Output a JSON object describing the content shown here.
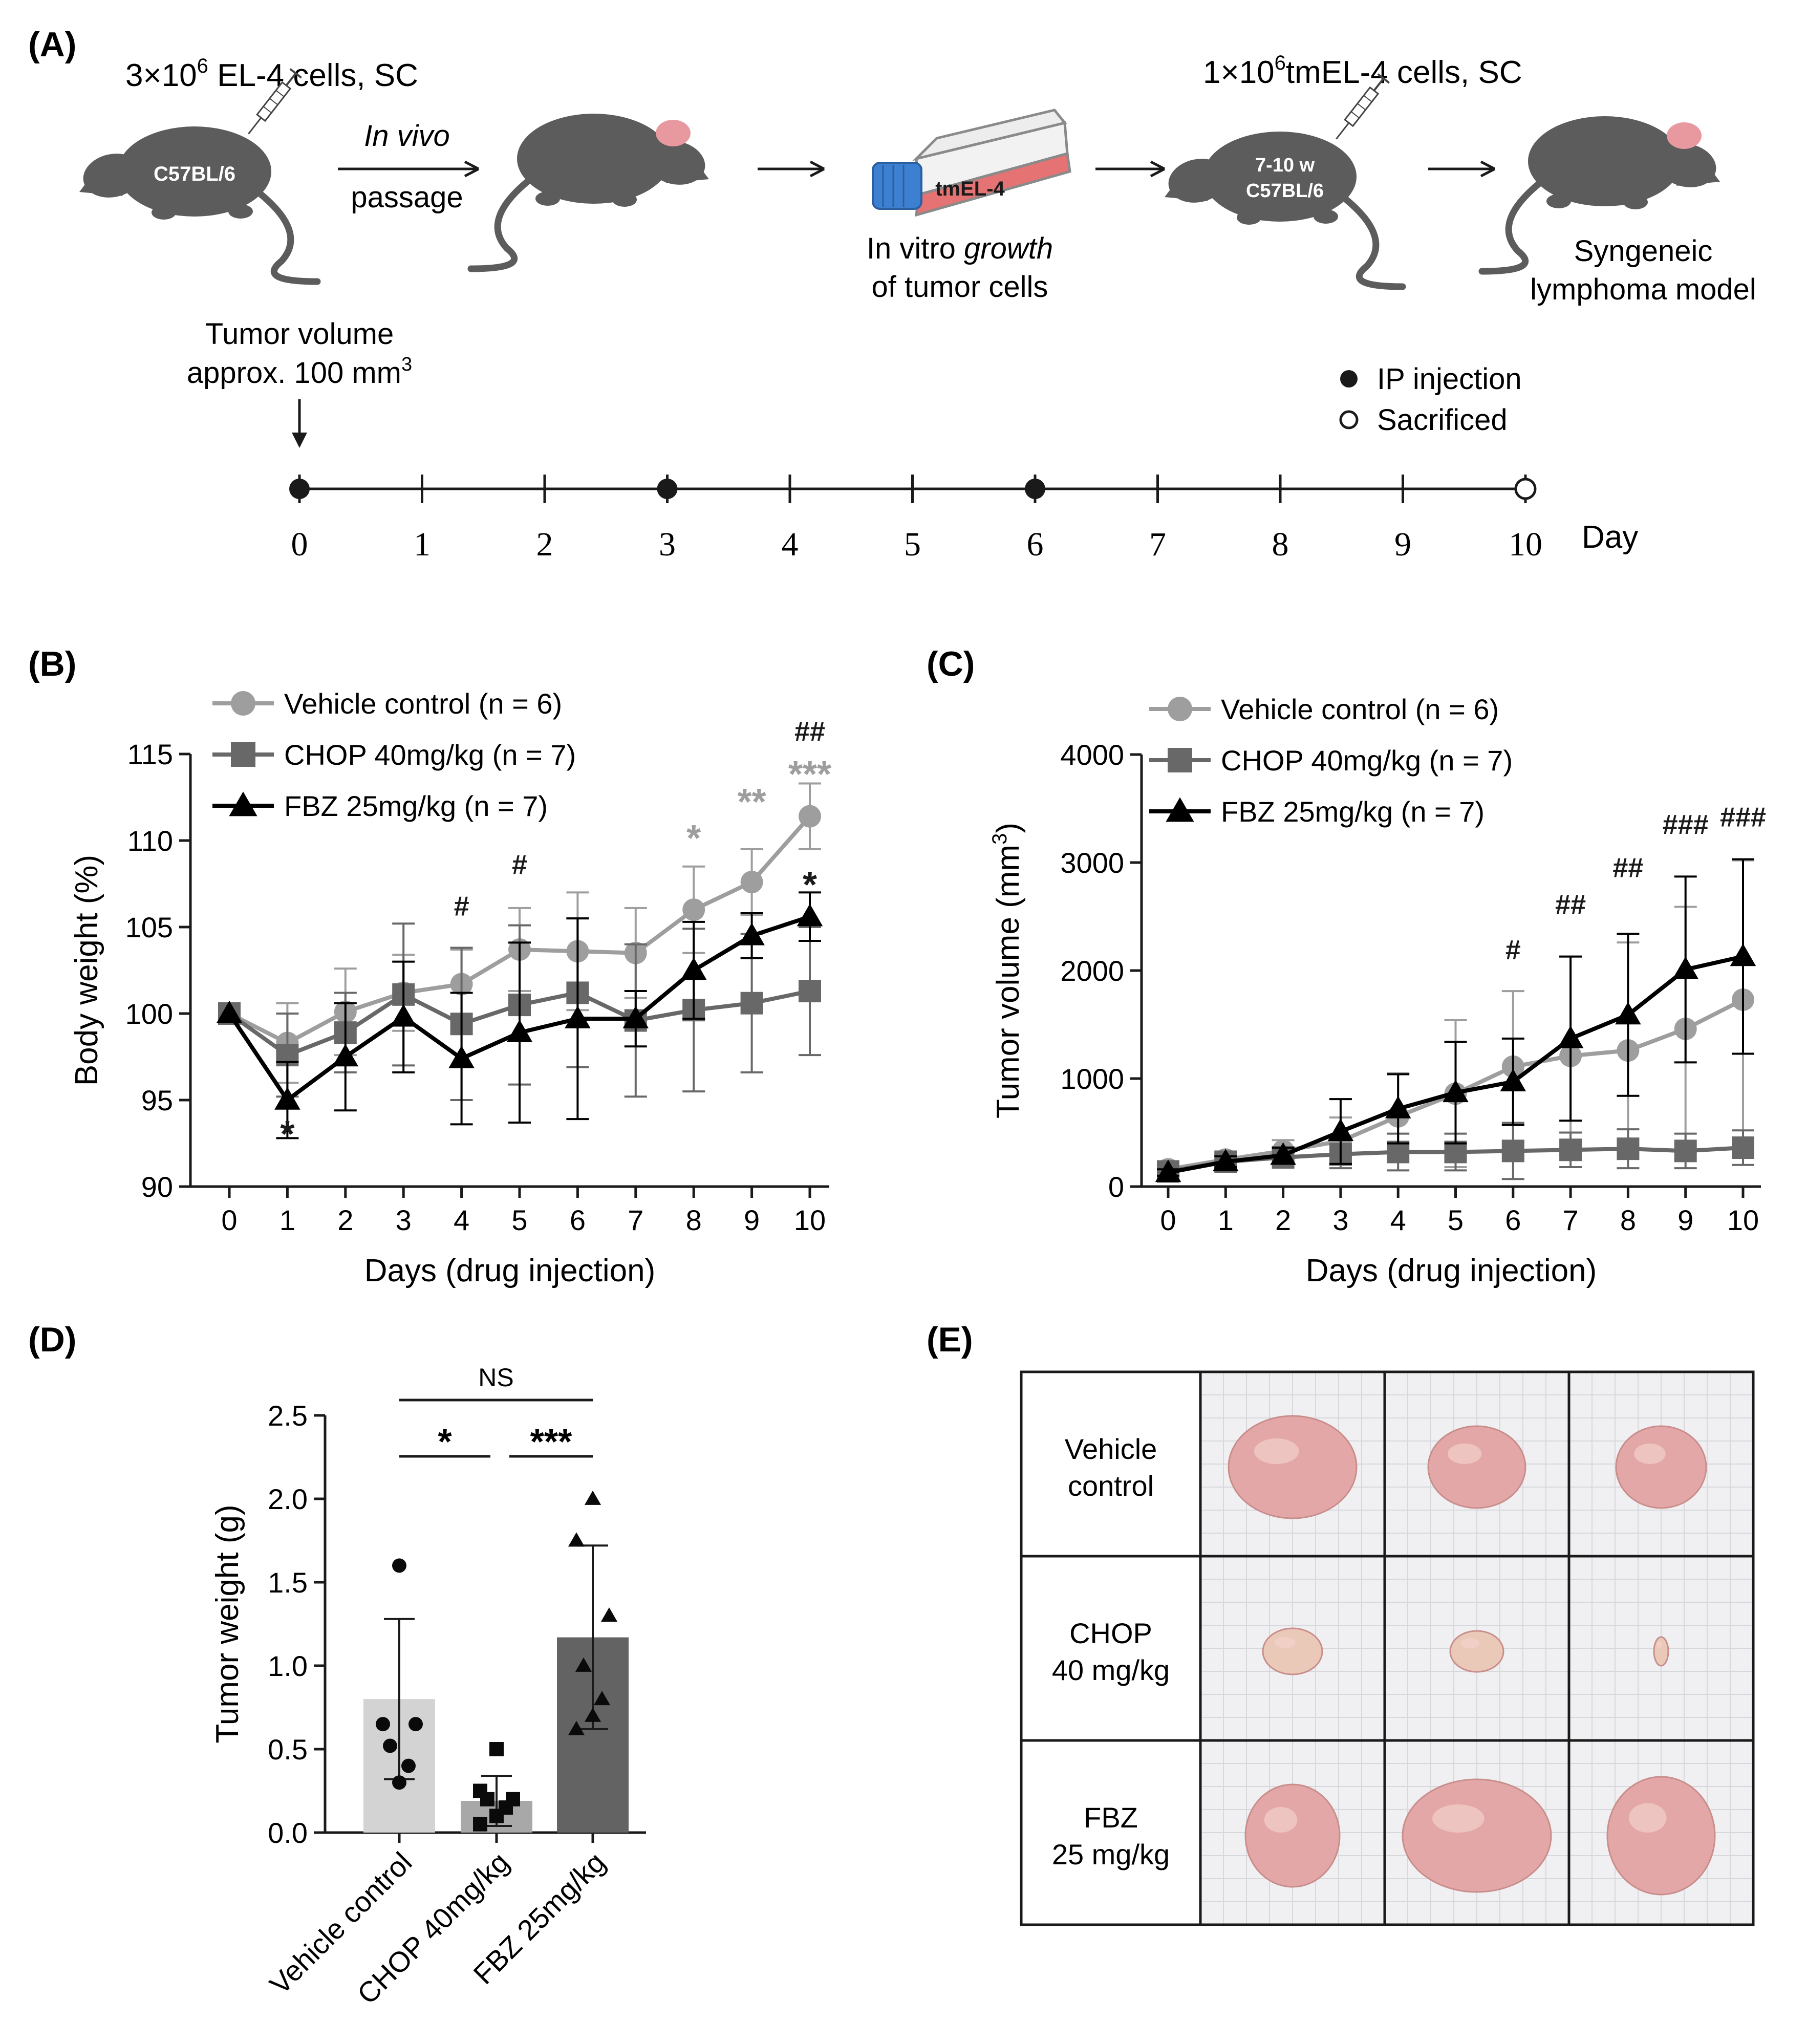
{
  "panel_labels": {
    "a": "(A)",
    "b": "(B)",
    "c": "(C)",
    "d": "(D)",
    "e": "(E)"
  },
  "panelA": {
    "step1_cells": "3×10",
    "step1_exp": "6",
    "step1_suffix": " EL-4 cells, SC",
    "mouse1_label": "C57BL/6",
    "arrow1_italic": "In vivo",
    "arrow1_sub": "passage",
    "flask_label": "tmEL-4",
    "flask_caption_1a": "In vitro ",
    "flask_caption_1b": "growth",
    "flask_caption_2": "of tumor cells",
    "step2_cells": "1×10",
    "step2_exp": "6",
    "step2_suffix": "tmEL-4 cells, SC",
    "mouse3_label_1": "7-10 w",
    "mouse3_label_2": "C57BL/6",
    "model_caption_1": "Syngeneic",
    "model_caption_2": "lymphoma model",
    "tumor_volume_1": "Tumor volume",
    "tumor_volume_2": "approx. 100 mm",
    "tumor_volume_exp": "3",
    "legend_ip": "IP injection",
    "legend_sacrificed": "Sacrificed",
    "timeline_unit": "Day",
    "timeline_days": [
      0,
      1,
      2,
      3,
      4,
      5,
      6,
      7,
      8,
      9,
      10
    ],
    "ip_injection_days": [
      0,
      3,
      6
    ],
    "sacrifice_day": 10,
    "colors": {
      "mouse": "#5c5c5c",
      "ear": "#e8999f",
      "flask_fill": "#e57373",
      "cap": "#3d7fd0"
    }
  },
  "chart_data": [
    {
      "id": "B",
      "type": "line",
      "xlabel": "Days (drug injection)",
      "ylabel": "Body weight (%)",
      "x": [
        0,
        1,
        2,
        3,
        4,
        5,
        6,
        7,
        8,
        9,
        10
      ],
      "xticks": [
        "0",
        "1",
        "2",
        "3",
        "4",
        "5",
        "6",
        "7",
        "8",
        "9",
        "10"
      ],
      "ylim": [
        90,
        115
      ],
      "yticks": [
        "90",
        "95",
        "100",
        "105",
        "110",
        "115"
      ],
      "legend_position": "top-left",
      "series": [
        {
          "name": "Vehicle control (n = 6)",
          "marker": "circle",
          "color": "#9e9e9e",
          "values": [
            100,
            98.3,
            100.1,
            101.2,
            101.7,
            103.7,
            103.6,
            103.5,
            106.0,
            107.6,
            111.4
          ],
          "err": [
            0,
            2.3,
            2.5,
            2.2,
            2.0,
            2.4,
            3.4,
            2.6,
            2.5,
            1.9,
            1.9
          ]
        },
        {
          "name": "CHOP 40mg/kg (n = 7)",
          "marker": "square",
          "color": "#686868",
          "values": [
            100,
            97.6,
            98.9,
            101.1,
            99.4,
            100.5,
            101.2,
            99.6,
            100.2,
            100.6,
            101.3
          ],
          "err": [
            0,
            2.4,
            2.3,
            4.1,
            4.4,
            4.6,
            4.3,
            4.4,
            4.7,
            4.0,
            3.7
          ]
        },
        {
          "name": "FBZ 25mg/kg (n = 7)",
          "marker": "triangle",
          "color": "#000000",
          "values": [
            100,
            95.0,
            97.5,
            99.8,
            97.4,
            98.9,
            99.7,
            99.7,
            102.5,
            104.5,
            105.6
          ],
          "err": [
            0,
            2.2,
            3.1,
            3.2,
            3.8,
            5.2,
            5.8,
            1.6,
            2.8,
            1.3,
            1.4
          ]
        }
      ],
      "annotations": [
        {
          "x": 1,
          "y": 93.2,
          "text": "*",
          "color": "#1a1a1a"
        },
        {
          "x": 4,
          "y": 106.2,
          "text": "#",
          "color": "#1a1a1a"
        },
        {
          "x": 5,
          "y": 108.6,
          "text": "#",
          "color": "#1a1a1a"
        },
        {
          "x": 8,
          "y": 110.3,
          "text": "*",
          "color": "#9e9e9e"
        },
        {
          "x": 9,
          "y": 112.4,
          "text": "**",
          "color": "#9e9e9e"
        },
        {
          "x": 10,
          "y": 114.0,
          "text": "***",
          "color": "#9e9e9e"
        },
        {
          "x": 10,
          "y": 116.3,
          "text": "##",
          "color": "#1a1a1a"
        },
        {
          "x": 10,
          "y": 107.6,
          "text": "*",
          "color": "#1a1a1a"
        }
      ]
    },
    {
      "id": "C",
      "type": "line",
      "xlabel": "Days (drug injection)",
      "ylabel": "Tumor volume (mm",
      "ylabel_exp": "3",
      "ylabel_close": ")",
      "x": [
        0,
        1,
        2,
        3,
        4,
        5,
        6,
        7,
        8,
        9,
        10
      ],
      "xticks": [
        "0",
        "1",
        "2",
        "3",
        "4",
        "5",
        "6",
        "7",
        "8",
        "9",
        "10"
      ],
      "ylim": [
        0,
        4000
      ],
      "yticks": [
        "0",
        "1000",
        "2000",
        "3000",
        "4000"
      ],
      "legend_position": "top-left",
      "series": [
        {
          "name": "Vehicle control (n = 6)",
          "marker": "circle",
          "color": "#9e9e9e",
          "values": [
            160,
            250,
            330,
            420,
            650,
            860,
            1110,
            1210,
            1260,
            1460,
            1730
          ],
          "err": [
            50,
            60,
            100,
            220,
            400,
            680,
            700,
            920,
            1000,
            1130,
            1290
          ]
        },
        {
          "name": "CHOP 40mg/kg (n = 7)",
          "marker": "square",
          "color": "#686868",
          "values": [
            140,
            230,
            270,
            300,
            320,
            320,
            330,
            340,
            350,
            330,
            360
          ],
          "err": [
            40,
            60,
            80,
            130,
            170,
            170,
            260,
            160,
            180,
            160,
            160
          ]
        },
        {
          "name": "FBZ 25mg/kg (n = 7)",
          "marker": "triangle",
          "color": "#000000",
          "values": [
            130,
            230,
            290,
            510,
            720,
            870,
            970,
            1370,
            1590,
            2010,
            2130
          ],
          "err": [
            30,
            50,
            70,
            300,
            320,
            470,
            400,
            760,
            750,
            860,
            900
          ]
        }
      ],
      "annotations": [
        {
          "x": 6,
          "y": 2190,
          "text": "#",
          "color": "#1a1a1a"
        },
        {
          "x": 7,
          "y": 2610,
          "text": "##",
          "color": "#1a1a1a"
        },
        {
          "x": 8,
          "y": 2950,
          "text": "##",
          "color": "#1a1a1a"
        },
        {
          "x": 9,
          "y": 3350,
          "text": "###",
          "color": "#1a1a1a"
        },
        {
          "x": 10,
          "y": 3420,
          "text": "###",
          "color": "#1a1a1a"
        }
      ]
    },
    {
      "id": "D",
      "type": "bar",
      "xlabel": "",
      "ylabel": "Tumor weight (g)",
      "categories": [
        "Vehicle control",
        "CHOP 40mg/kg",
        "FBZ 25mg/kg"
      ],
      "values": [
        0.8,
        0.19,
        1.17
      ],
      "err": [
        0.48,
        0.15,
        0.55
      ],
      "bar_colors": [
        "#d3d3d3",
        "#a8a8a8",
        "#636363"
      ],
      "points": [
        [
          1.6,
          0.65,
          0.65,
          0.52,
          0.4,
          0.3
        ],
        [
          0.5,
          0.25,
          0.2,
          0.2,
          0.15,
          0.1,
          0.05
        ],
        [
          2.0,
          1.75,
          1.3,
          1.0,
          0.8,
          0.7,
          0.62
        ]
      ],
      "point_markers": [
        "circle",
        "square",
        "triangle"
      ],
      "ylim": [
        0,
        2.5
      ],
      "yticks": [
        "0.0",
        "0.5",
        "1.0",
        "1.5",
        "2.0",
        "2.5"
      ],
      "significance": [
        {
          "from": 0,
          "to": 2,
          "label": "NS"
        },
        {
          "from": 0,
          "to": 1,
          "label": "*"
        },
        {
          "from": 1,
          "to": 2,
          "label": "***"
        }
      ]
    }
  ],
  "panelE": {
    "rows": [
      {
        "label_1": "Vehicle",
        "label_2": "control"
      },
      {
        "label_1": "CHOP",
        "label_2": "40 mg/kg"
      },
      {
        "label_1": "FBZ",
        "label_2": "25 mg/kg"
      }
    ],
    "tumor_sizes": [
      [
        [
          125,
          100
        ],
        [
          95,
          80
        ],
        [
          88,
          80
        ]
      ],
      [
        [
          58,
          45
        ],
        [
          52,
          40
        ],
        [
          14,
          28
        ]
      ],
      [
        [
          92,
          100
        ],
        [
          145,
          110
        ],
        [
          105,
          115
        ]
      ]
    ],
    "colors": {
      "photo_bg": "#f0f0f2",
      "grid": "#d6d8dc",
      "tumor": "#e2a7a6",
      "tumor_small": "#eac9b8"
    }
  }
}
